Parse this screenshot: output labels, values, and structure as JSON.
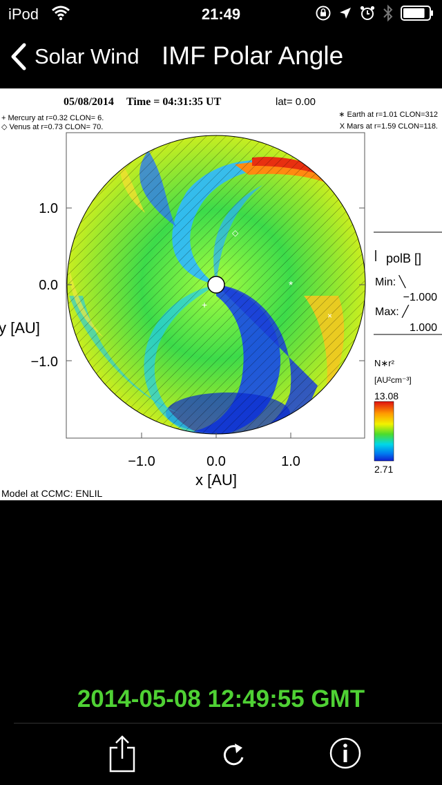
{
  "status_bar": {
    "carrier": "iPod",
    "time": "21:49",
    "battery_level": 0.85
  },
  "nav": {
    "back_label": "Solar Wind",
    "title": "IMF Polar Angle"
  },
  "plot": {
    "header_date": "05/08/2014",
    "header_time": "Time = 04:31:35 UT",
    "header_lat": "lat= 0.00",
    "planets": {
      "mercury": "+ Mercury at r=0.32 CLON=  6.",
      "venus": "◇ Venus at r=0.73 CLON= 70.",
      "earth": "∗ Earth at  r=1.01 CLON=312",
      "mars": "X Mars at r=1.59 CLON=118."
    },
    "yticks": [
      "1.0",
      "0.0",
      "−1.0"
    ],
    "xticks": [
      "−1.0",
      "0.0",
      "1.0"
    ],
    "ylabel": "y [AU]",
    "xlabel": "x [AU]",
    "legend": {
      "title": "polB []",
      "min_label": "Min: ╲",
      "min_value": "−1.000",
      "max_label": "Max: ╱",
      "max_value": "1.000"
    },
    "colorbar": {
      "title": "N∗r²",
      "units": "[AU²cm⁻³]",
      "max": "13.08",
      "min": "2.71"
    },
    "footer": "Model at CCMC: ENLIL"
  },
  "timestamp": "2014-05-08 12:49:55 GMT",
  "toolbar": {
    "share_icon": "share-icon",
    "refresh_icon": "refresh-icon",
    "info_icon": "info-icon"
  }
}
